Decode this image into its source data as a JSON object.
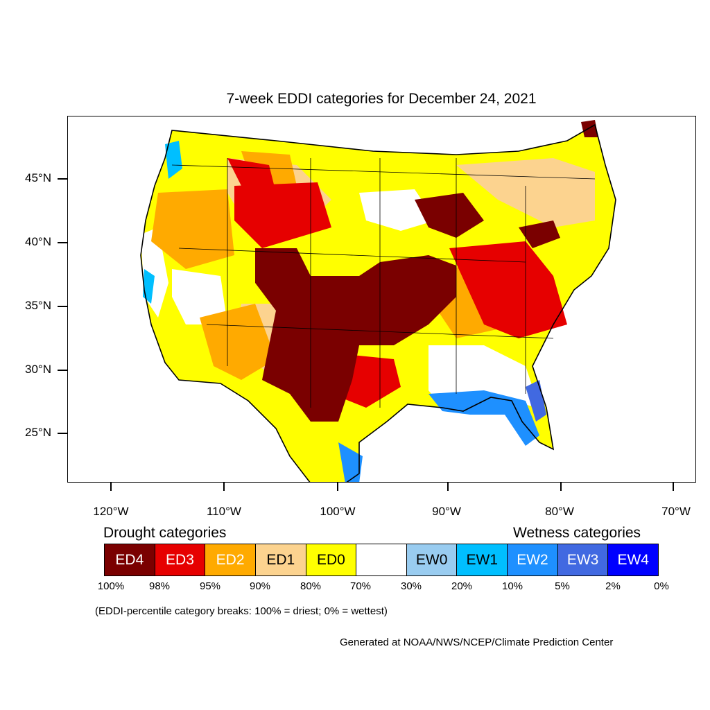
{
  "title": "7-week EDDI categories for December 24, 2021",
  "latitude_labels": [
    "45°N",
    "40°N",
    "35°N",
    "30°N",
    "25°N"
  ],
  "longitude_labels": [
    "120°W",
    "110°W",
    "100°W",
    "90°W",
    "80°W",
    "70°W"
  ],
  "legend": {
    "drought_heading": "Drought categories",
    "wetness_heading": "Wetness categories",
    "categories": [
      {
        "label": "ED4",
        "color": "#7a0000",
        "text_color": "#ffffff"
      },
      {
        "label": "ED3",
        "color": "#e60000",
        "text_color": "#ffffff"
      },
      {
        "label": "ED2",
        "color": "#ffaa00",
        "text_color": "#ffffff"
      },
      {
        "label": "ED1",
        "color": "#fcd38f",
        "text_color": "#000000"
      },
      {
        "label": "ED0",
        "color": "#ffff00",
        "text_color": "#000000"
      },
      {
        "label": "",
        "color": "#ffffff",
        "text_color": "#000000"
      },
      {
        "label": "EW0",
        "color": "#99ccf0",
        "text_color": "#000000"
      },
      {
        "label": "EW1",
        "color": "#00bfff",
        "text_color": "#000000"
      },
      {
        "label": "EW2",
        "color": "#1e90ff",
        "text_color": "#ffffff"
      },
      {
        "label": "EW3",
        "color": "#4169e1",
        "text_color": "#ffffff"
      },
      {
        "label": "EW4",
        "color": "#0000ff",
        "text_color": "#ffffff"
      }
    ],
    "breaks": [
      "100%",
      "98%",
      "95%",
      "90%",
      "80%",
      "70%",
      "30%",
      "20%",
      "10%",
      "5%",
      "2%",
      "0%"
    ]
  },
  "note": "(EDDI-percentile category breaks: 100% = driest; 0% = wettest)",
  "credit": "Generated at NOAA/NWS/NCEP/Climate Prediction Center"
}
